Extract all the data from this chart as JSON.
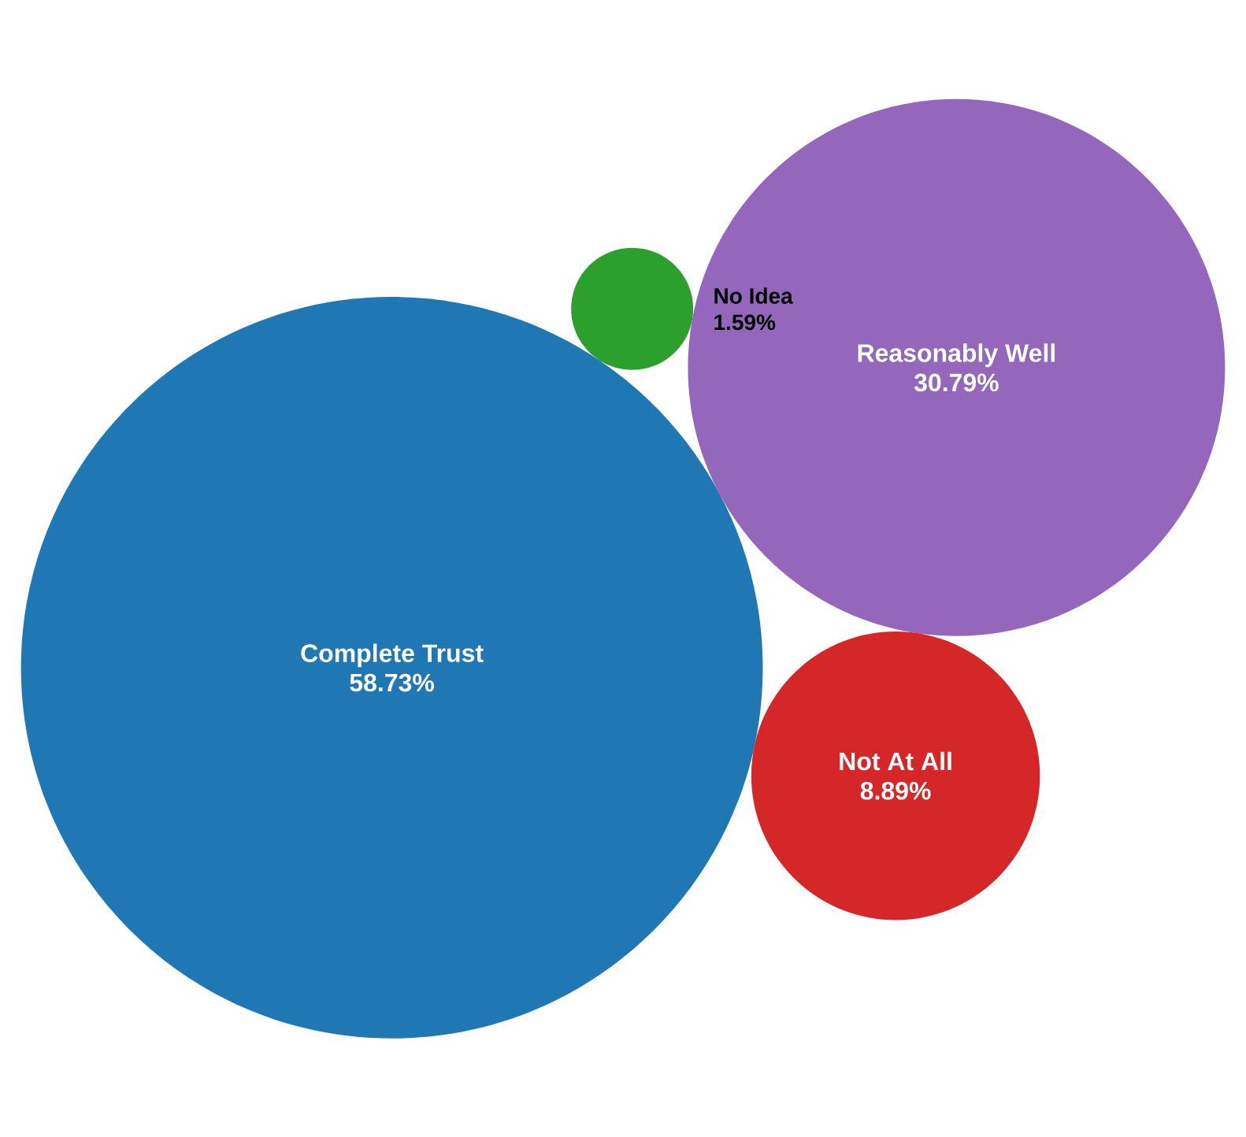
{
  "chart_data": {
    "type": "other",
    "categories": [
      "Complete Trust",
      "Reasonably Well",
      "Not At All",
      "No Idea"
    ],
    "values": [
      58.73,
      30.79,
      8.89,
      1.59
    ],
    "colors": [
      "#1f77b4",
      "#9467bd",
      "#d62728",
      "#2ca02c"
    ],
    "value_labels": [
      "58.73%",
      "30.79%",
      "8.89%",
      "1.59%"
    ]
  }
}
